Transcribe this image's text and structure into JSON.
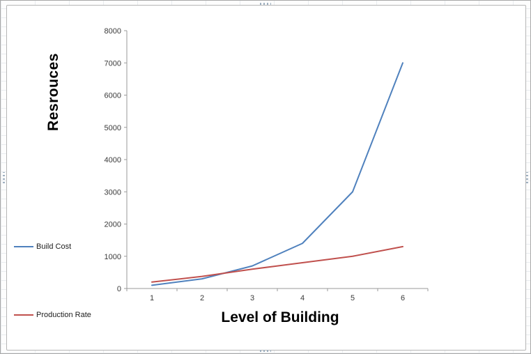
{
  "chart_data": {
    "type": "line",
    "title": "",
    "x": [
      1,
      2,
      3,
      4,
      5,
      6
    ],
    "series": [
      {
        "name": "Build Cost",
        "color": "#4F81BD",
        "values": [
          100,
          300,
          700,
          1400,
          3000,
          7000
        ]
      },
      {
        "name": "Production Rate",
        "color": "#C0504D",
        "values": [
          200,
          375,
          600,
          800,
          1000,
          1300
        ]
      }
    ],
    "xlabel": "Level of Building",
    "ylabel": "Resrouces",
    "ylim": [
      0,
      8000
    ],
    "ytick_step": 1000,
    "yticks": [
      0,
      1000,
      2000,
      3000,
      4000,
      5000,
      6000,
      7000,
      8000
    ],
    "legend": [
      "Build Cost",
      "Production Rate"
    ],
    "legend_position": "left",
    "grid": false,
    "axis_color": "#9a9a9a",
    "tick_label_color": "#3a3a3a"
  }
}
